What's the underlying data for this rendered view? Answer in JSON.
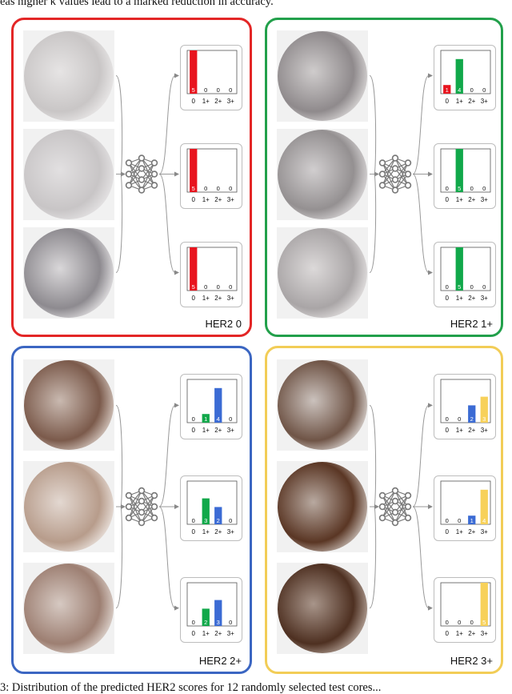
{
  "caption_top": "eas higher κ values lead to a marked reduction in accuracy.",
  "caption_bottom": "3: Distribution of the predicted HER2 scores for 12 randomly selected test cores...",
  "colors": {
    "red": "#e8141e",
    "green": "#11a84a",
    "blue": "#3b6bd4",
    "yellow": "#f7d15a"
  },
  "panels": [
    {
      "label": "HER2 0",
      "border": "#e32626",
      "core_tones": [
        [
          "#c9c6c6",
          "#e6e4e4"
        ],
        [
          "#c8c5c6",
          "#e2e0e1"
        ],
        [
          "#8d8a8f",
          "#d9d7d9"
        ]
      ]
    },
    {
      "label": "HER2 1+",
      "border": "#22a04b",
      "core_tones": [
        [
          "#8f8a8c",
          "#cfcccc"
        ],
        [
          "#949091",
          "#d1cecf"
        ],
        [
          "#a9a5a6",
          "#dcd9d9"
        ]
      ]
    },
    {
      "label": "HER2 2+",
      "border": "#3b66c2",
      "core_tones": [
        [
          "#7b5a4b",
          "#c9b9b0"
        ],
        [
          "#b79c8b",
          "#e3d8d1"
        ],
        [
          "#9d7f72",
          "#d6c9c2"
        ]
      ]
    },
    {
      "label": "HER2 3+",
      "border": "#f2cd57",
      "core_tones": [
        [
          "#6f5446",
          "#cbc2bd"
        ],
        [
          "#5a3624",
          "#b8a9a0"
        ],
        [
          "#4e3021",
          "#a8958a"
        ]
      ]
    }
  ],
  "chart_data": [
    {
      "type": "bar",
      "panel": "HER2 0",
      "categories": [
        "0",
        "1+",
        "2+",
        "3+"
      ],
      "values": [
        5,
        0,
        0,
        0
      ]
    },
    {
      "type": "bar",
      "panel": "HER2 0",
      "categories": [
        "0",
        "1+",
        "2+",
        "3+"
      ],
      "values": [
        5,
        0,
        0,
        0
      ]
    },
    {
      "type": "bar",
      "panel": "HER2 0",
      "categories": [
        "0",
        "1+",
        "2+",
        "3+"
      ],
      "values": [
        5,
        0,
        0,
        0
      ]
    },
    {
      "type": "bar",
      "panel": "HER2 1+",
      "categories": [
        "0",
        "1+",
        "2+",
        "3+"
      ],
      "values": [
        1,
        4,
        0,
        0
      ]
    },
    {
      "type": "bar",
      "panel": "HER2 1+",
      "categories": [
        "0",
        "1+",
        "2+",
        "3+"
      ],
      "values": [
        0,
        5,
        0,
        0
      ]
    },
    {
      "type": "bar",
      "panel": "HER2 1+",
      "categories": [
        "0",
        "1+",
        "2+",
        "3+"
      ],
      "values": [
        0,
        5,
        0,
        0
      ]
    },
    {
      "type": "bar",
      "panel": "HER2 2+",
      "categories": [
        "0",
        "1+",
        "2+",
        "3+"
      ],
      "values": [
        0,
        1,
        4,
        0
      ]
    },
    {
      "type": "bar",
      "panel": "HER2 2+",
      "categories": [
        "0",
        "1+",
        "2+",
        "3+"
      ],
      "values": [
        0,
        3,
        2,
        0
      ]
    },
    {
      "type": "bar",
      "panel": "HER2 2+",
      "categories": [
        "0",
        "1+",
        "2+",
        "3+"
      ],
      "values": [
        0,
        2,
        3,
        0
      ]
    },
    {
      "type": "bar",
      "panel": "HER2 3+",
      "categories": [
        "0",
        "1+",
        "2+",
        "3+"
      ],
      "values": [
        0,
        0,
        2,
        3
      ]
    },
    {
      "type": "bar",
      "panel": "HER2 3+",
      "categories": [
        "0",
        "1+",
        "2+",
        "3+"
      ],
      "values": [
        0,
        0,
        1,
        4
      ]
    },
    {
      "type": "bar",
      "panel": "HER2 3+",
      "categories": [
        "0",
        "1+",
        "2+",
        "3+"
      ],
      "values": [
        0,
        0,
        0,
        5
      ]
    }
  ]
}
